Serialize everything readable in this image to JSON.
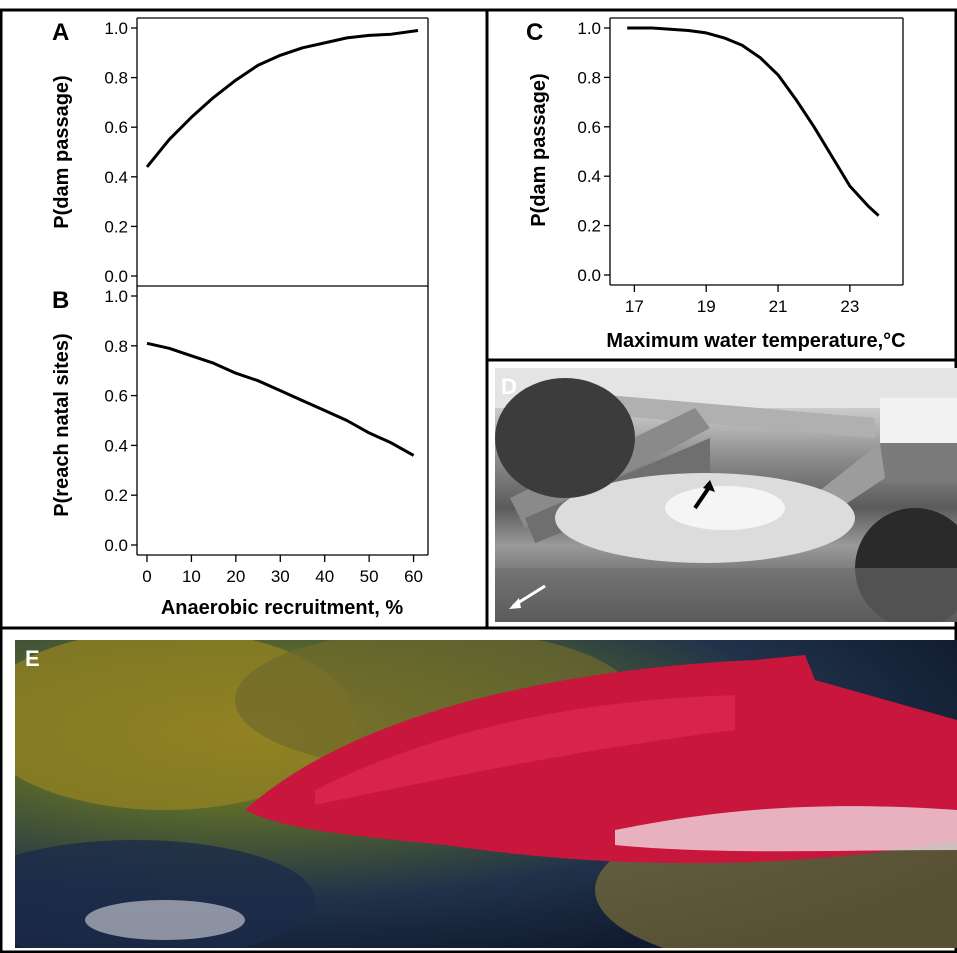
{
  "panels": {
    "a": {
      "label": "A"
    },
    "b": {
      "label": "B"
    },
    "c": {
      "label": "C"
    },
    "d": {
      "label": "D"
    },
    "e": {
      "label": "E"
    }
  },
  "colors": {
    "line": "#000000",
    "frame": "#000000",
    "arrow_white": "#ffffff"
  },
  "chart_data": [
    {
      "id": "A",
      "type": "line",
      "ylabel": "P(dam passage)",
      "xlabel": "",
      "xlim": [
        0,
        61
      ],
      "ylim": [
        0.0,
        1.0
      ],
      "yticks": [
        "0.0",
        "0.2",
        "0.4",
        "0.6",
        "0.8",
        "1.0"
      ],
      "series": [
        {
          "x": [
            0,
            5,
            10,
            15,
            20,
            25,
            30,
            35,
            40,
            45,
            50,
            55,
            61
          ],
          "y": [
            0.44,
            0.55,
            0.64,
            0.72,
            0.79,
            0.85,
            0.89,
            0.92,
            0.94,
            0.96,
            0.97,
            0.975,
            0.99
          ]
        }
      ]
    },
    {
      "id": "B",
      "type": "line",
      "ylabel": "P(reach natal sites)",
      "xlabel": "Anaerobic recruitment, %",
      "xlim": [
        0,
        61
      ],
      "ylim": [
        0.0,
        1.0
      ],
      "xticks": [
        "0",
        "10",
        "20",
        "30",
        "40",
        "50",
        "60"
      ],
      "yticks": [
        "0.0",
        "0.2",
        "0.4",
        "0.6",
        "0.8",
        "1.0"
      ],
      "series": [
        {
          "x": [
            0,
            5,
            10,
            15,
            20,
            25,
            30,
            35,
            40,
            45,
            50,
            55,
            60
          ],
          "y": [
            0.81,
            0.79,
            0.76,
            0.73,
            0.69,
            0.66,
            0.62,
            0.58,
            0.54,
            0.5,
            0.45,
            0.41,
            0.36
          ]
        }
      ]
    },
    {
      "id": "C",
      "type": "line",
      "ylabel": "P(dam passage)",
      "xlabel": "Maximum water temperature,°C",
      "xlim": [
        16.6,
        24.2
      ],
      "ylim": [
        0.0,
        1.0
      ],
      "xticks": [
        "17",
        "19",
        "21",
        "23"
      ],
      "yticks": [
        "0.0",
        "0.2",
        "0.4",
        "0.6",
        "0.8",
        "1.0"
      ],
      "series": [
        {
          "x": [
            16.8,
            17.5,
            18.0,
            18.5,
            19.0,
            19.5,
            20.0,
            20.5,
            21.0,
            21.5,
            22.0,
            22.5,
            23.0,
            23.5,
            23.8
          ],
          "y": [
            1.0,
            1.0,
            0.995,
            0.99,
            0.98,
            0.96,
            0.93,
            0.88,
            0.81,
            0.71,
            0.6,
            0.48,
            0.36,
            0.28,
            0.24
          ]
        }
      ]
    }
  ]
}
